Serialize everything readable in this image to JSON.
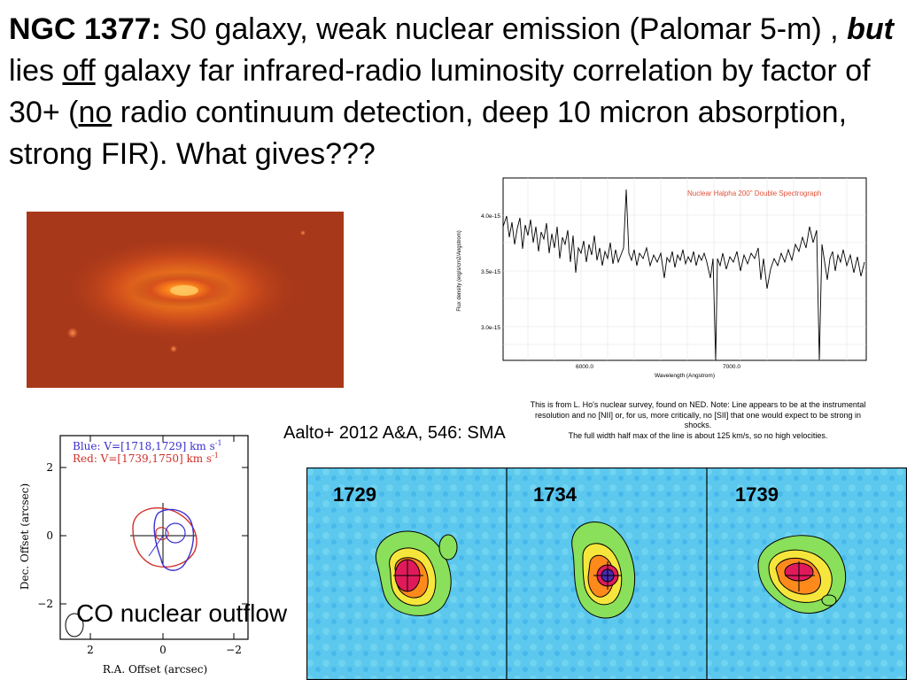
{
  "title": {
    "object": "NGC 1377:",
    "part1": " S0 galaxy, weak nuclear emission (Palomar 5-m) , ",
    "but": "but",
    "part2": " lies ",
    "off": "off",
    "part3": " galaxy far infrared-radio luminosity correlation by factor of 30+ (",
    "no": "no",
    "part4": " radio continuum detection, deep 10 micron absorption, strong FIR). What gives???"
  },
  "spectrum": {
    "plot_title": "Nuclear Halpha 200\" Double Spectrograph",
    "xlabel": "Wavelength (Angstrom)",
    "ylabel": "Flux density (erg/s/cm2/Angstrom)",
    "yticks": [
      "4.0e-15",
      "3.5e-15",
      "3.0e-15"
    ],
    "xticks": [
      "6000.0",
      "7000.0"
    ],
    "title_color": "#e0523a"
  },
  "note": {
    "line1": "This is from L. Ho's nuclear survey, found on NED. Note: Line appears to be at the instrumental",
    "line2": "resolution and no [NII] or, for us, more critically, no [SII] that one would expect to be strong in",
    "line3": "shocks.",
    "line4": "The full width half max of the line is about 125 km/s, so no high velocities."
  },
  "citation": "Aalto+ 2012 A&A, 546: SMA",
  "outflow_plot": {
    "legend_blue": "Blue: V=[1718,1729] km s",
    "legend_red": "Red: V=[1739,1750] km s",
    "legend_sup": "-1",
    "ylabel": "Dec. Offset (arcsec)",
    "xlabel": "R.A. Offset (arcsec)",
    "yticks": [
      "2",
      "0",
      "−2"
    ],
    "xticks": [
      "2",
      "0",
      "−2"
    ],
    "blue_color": "#3a2fd0",
    "red_color": "#d0302a"
  },
  "co_label": "CO nuclear outflow",
  "channels": {
    "labels": [
      "1729",
      "1734",
      "1739"
    ]
  }
}
